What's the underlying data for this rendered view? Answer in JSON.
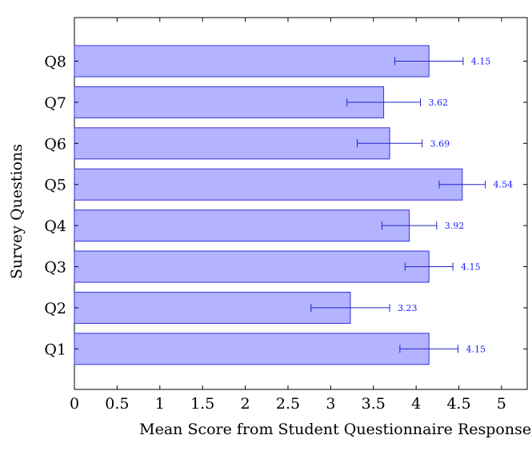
{
  "chart_data": {
    "type": "bar",
    "orientation": "horizontal",
    "title": "",
    "xlabel": "Mean Score from Student Questionnaire Responses",
    "ylabel": "Survey Questions",
    "xlim": [
      0,
      5.3
    ],
    "x_ticks": [
      "0",
      "0.5",
      "1",
      "1.5",
      "2",
      "2.5",
      "3",
      "3.5",
      "4",
      "4.5",
      "5"
    ],
    "categories": [
      "Q1",
      "Q2",
      "Q3",
      "Q4",
      "Q5",
      "Q6",
      "Q7",
      "Q8"
    ],
    "values": [
      4.15,
      3.23,
      4.15,
      3.92,
      4.54,
      3.69,
      3.62,
      4.15
    ],
    "value_labels": [
      "4.15",
      "3.23",
      "4.15",
      "3.92",
      "4.54",
      "3.69",
      "3.62",
      "4.15"
    ],
    "error_bars": [
      {
        "lower": 3.81,
        "upper": 4.49
      },
      {
        "lower": 2.77,
        "upper": 3.69
      },
      {
        "lower": 3.87,
        "upper": 4.43
      },
      {
        "lower": 3.6,
        "upper": 4.24
      },
      {
        "lower": 4.27,
        "upper": 4.81
      },
      {
        "lower": 3.31,
        "upper": 4.07
      },
      {
        "lower": 3.19,
        "upper": 4.05
      },
      {
        "lower": 3.75,
        "upper": 4.55
      }
    ],
    "grid": false,
    "legend": "none",
    "colors": {
      "bar_fill": "#b3b3ff",
      "bar_stroke": "#3333dd",
      "error_bar": "#2222cc",
      "label_text": "#1a1aff"
    }
  }
}
